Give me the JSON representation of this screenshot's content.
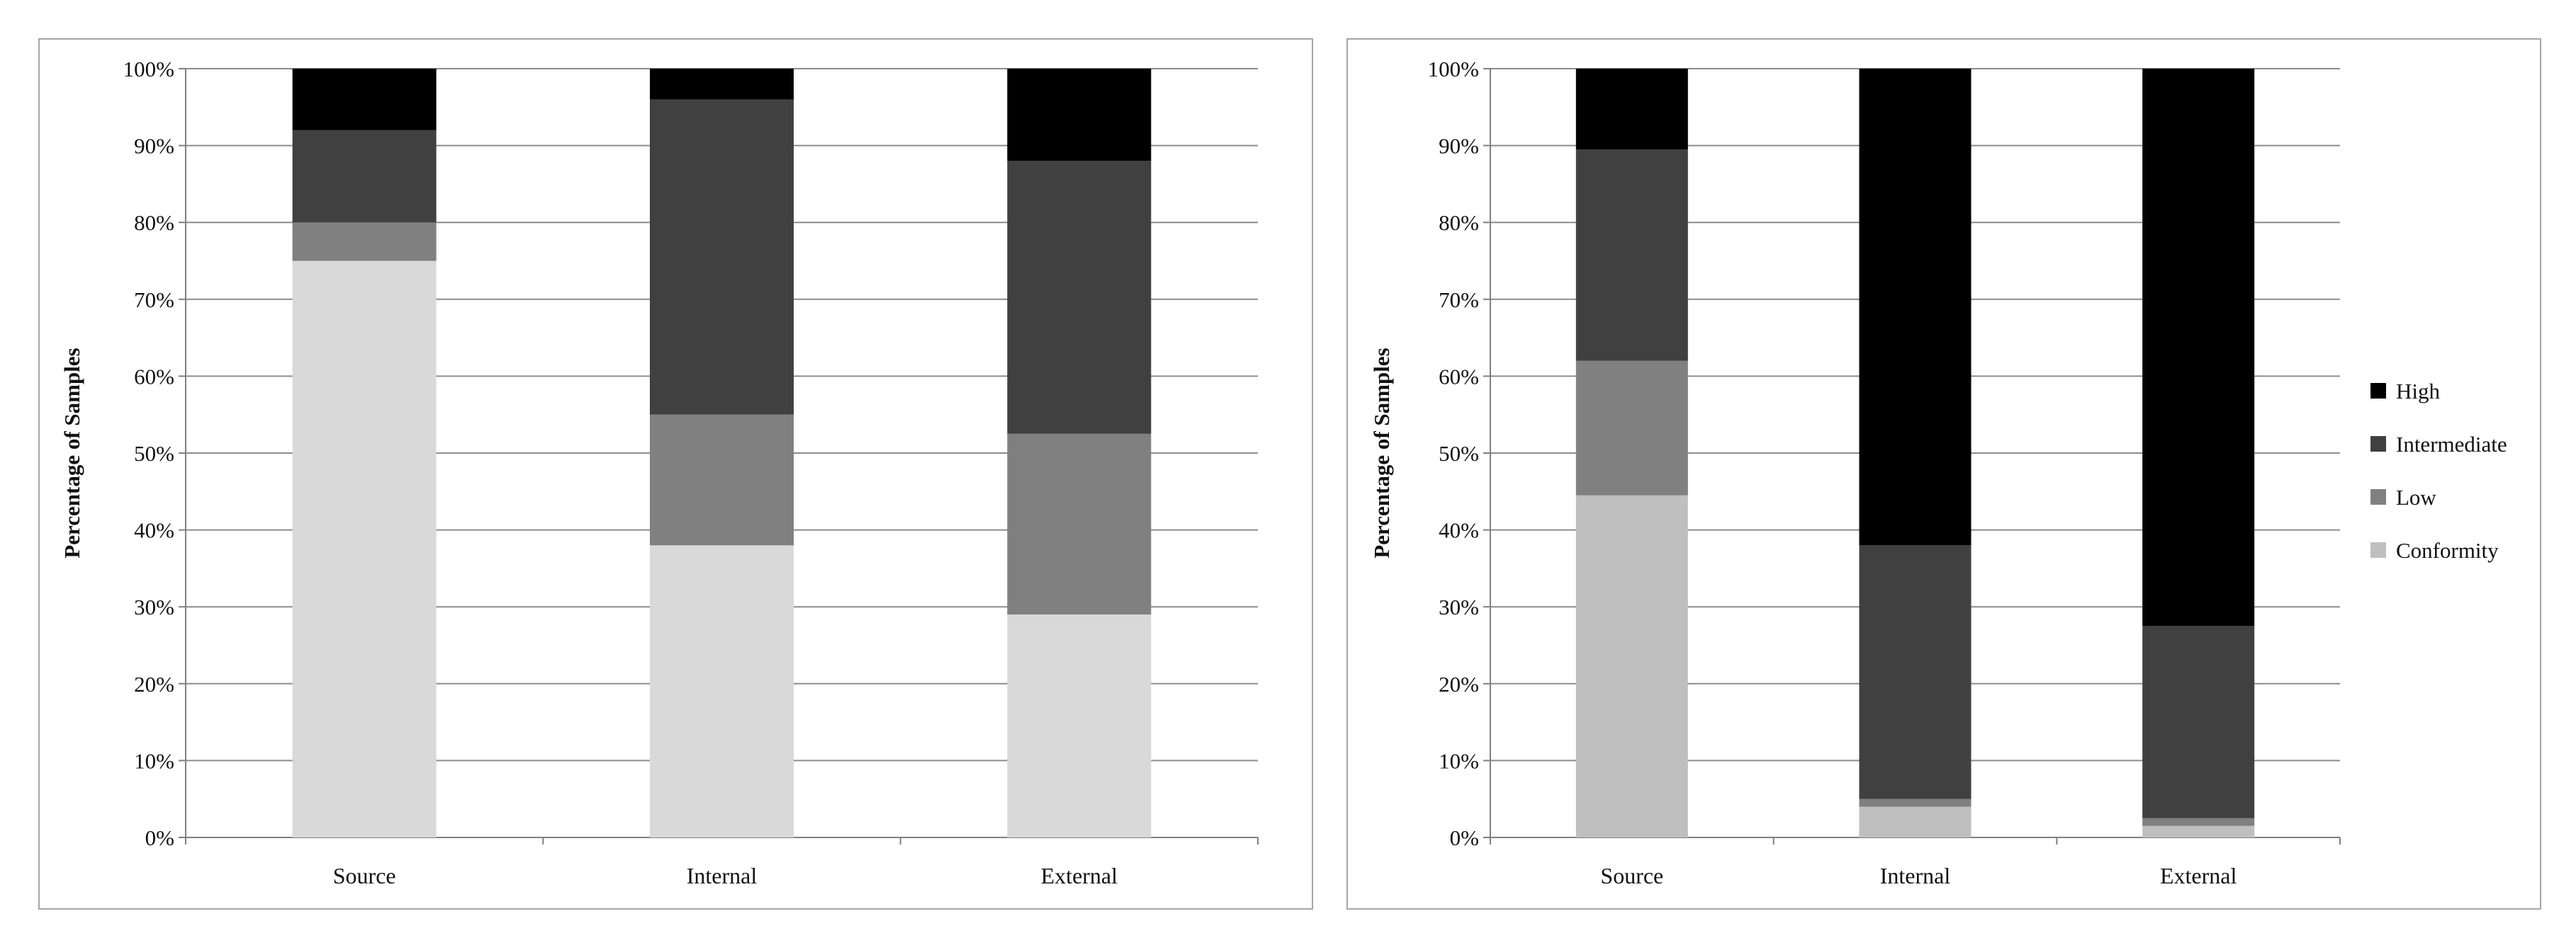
{
  "chart_data": [
    {
      "type": "bar",
      "stacked": true,
      "percent_stacked": true,
      "title": "",
      "xlabel": "",
      "ylabel": "Percentage of Samples",
      "ylim": [
        0,
        100
      ],
      "y_ticks": [
        "0%",
        "10%",
        "20%",
        "30%",
        "40%",
        "50%",
        "60%",
        "70%",
        "80%",
        "90%",
        "100%"
      ],
      "grid": true,
      "legend": null,
      "categories": [
        "Source",
        "Internal",
        "External"
      ],
      "series": [
        {
          "name": "Conformity",
          "color": "#d9d9d9",
          "values": [
            75,
            38,
            29
          ]
        },
        {
          "name": "Low",
          "color": "#808080",
          "values": [
            5,
            17,
            23.5
          ]
        },
        {
          "name": "Intermediate",
          "color": "#404040",
          "values": [
            12,
            41,
            35.5
          ]
        },
        {
          "name": "High",
          "color": "#000000",
          "values": [
            8,
            4,
            12
          ]
        }
      ]
    },
    {
      "type": "bar",
      "stacked": true,
      "percent_stacked": true,
      "title": "",
      "xlabel": "",
      "ylabel": "Percentage of Samples",
      "ylim": [
        0,
        100
      ],
      "y_ticks": [
        "0%",
        "10%",
        "20%",
        "30%",
        "40%",
        "50%",
        "60%",
        "70%",
        "80%",
        "90%",
        "100%"
      ],
      "grid": true,
      "legend": "right",
      "categories": [
        "Source",
        "Internal",
        "External"
      ],
      "series": [
        {
          "name": "Conformity",
          "color": "#bfbfbf",
          "values": [
            44.5,
            4,
            1.5
          ]
        },
        {
          "name": "Low",
          "color": "#808080",
          "values": [
            17.5,
            1,
            1
          ]
        },
        {
          "name": "Intermediate",
          "color": "#404040",
          "values": [
            27.5,
            33,
            25
          ]
        },
        {
          "name": "High",
          "color": "#000000",
          "values": [
            10.5,
            62,
            72.5
          ]
        }
      ]
    }
  ]
}
